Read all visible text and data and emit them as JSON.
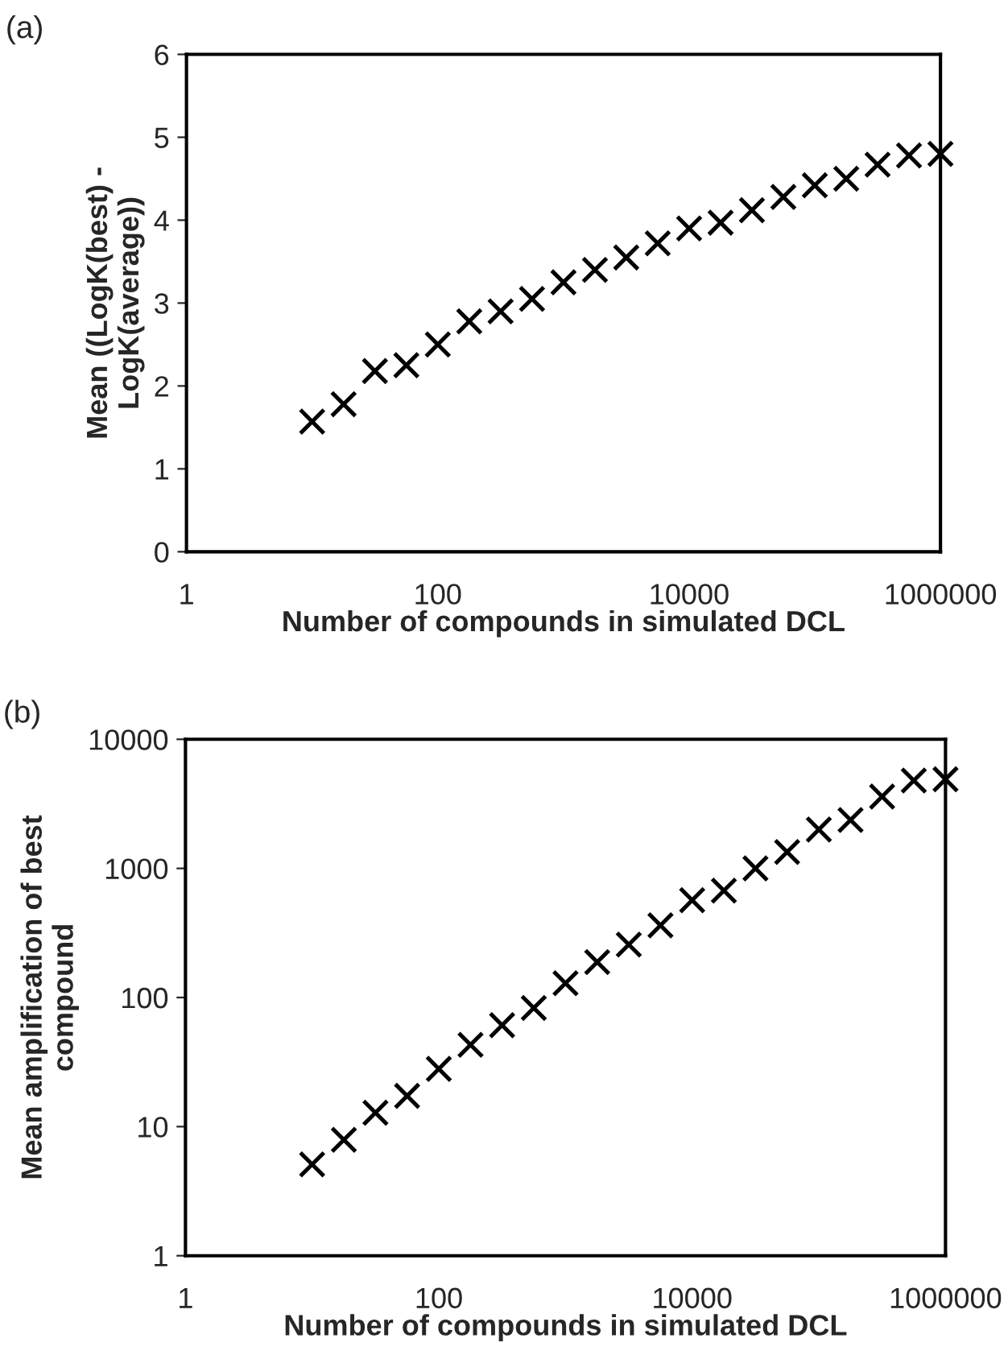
{
  "chart_data": [
    {
      "type": "scatter",
      "title": "(a)",
      "xlabel": "Number of compounds in simulated DCL",
      "ylabel": "Mean ((LogK(best) -\nLogK(average))",
      "log": "x",
      "marker": "cross",
      "grid": false,
      "x": [
        10,
        17.8,
        31.6,
        56.2,
        100,
        178,
        316,
        562,
        1000,
        1780,
        3160,
        5620,
        10000,
        17800,
        31600,
        56200,
        100000,
        178000,
        316000,
        562000,
        1000000
      ],
      "series": [
        {
          "color": "#000000",
          "values": [
            1.57,
            1.78,
            2.18,
            2.25,
            2.5,
            2.78,
            2.9,
            3.05,
            3.25,
            3.4,
            3.55,
            3.72,
            3.9,
            3.97,
            4.12,
            4.28,
            4.42,
            4.5,
            4.67,
            4.78,
            4.8
          ]
        }
      ],
      "xlim": [
        1,
        1000000
      ],
      "xticks": [
        1,
        100,
        10000,
        1000000
      ],
      "ylim": [
        0,
        6
      ],
      "yticks": [
        0,
        1,
        2,
        3,
        4,
        5,
        6
      ]
    },
    {
      "type": "scatter",
      "title": "(b)",
      "xlabel": "Number of compounds in simulated DCL",
      "ylabel": "Mean amplification of best\ncompound",
      "log": "xy",
      "marker": "cross",
      "grid": false,
      "x": [
        10,
        17.8,
        31.6,
        56.2,
        100,
        178,
        316,
        562,
        1000,
        1780,
        3160,
        5620,
        10000,
        17800,
        31600,
        56200,
        100000,
        178000,
        316000,
        562000,
        1000000
      ],
      "series": [
        {
          "color": "#000000",
          "values": [
            5.1,
            7.9,
            12.8,
            17.3,
            28,
            43,
            61,
            83,
            129,
            188,
            257,
            362,
            567,
            673,
            1000,
            1340,
            2000,
            2370,
            3600,
            4790,
            4900
          ]
        }
      ],
      "xlim": [
        1,
        1000000
      ],
      "xticks": [
        1,
        100,
        10000,
        1000000
      ],
      "ylim": [
        1,
        10000
      ],
      "yticks": [
        1,
        10,
        100,
        1000,
        10000
      ]
    }
  ]
}
